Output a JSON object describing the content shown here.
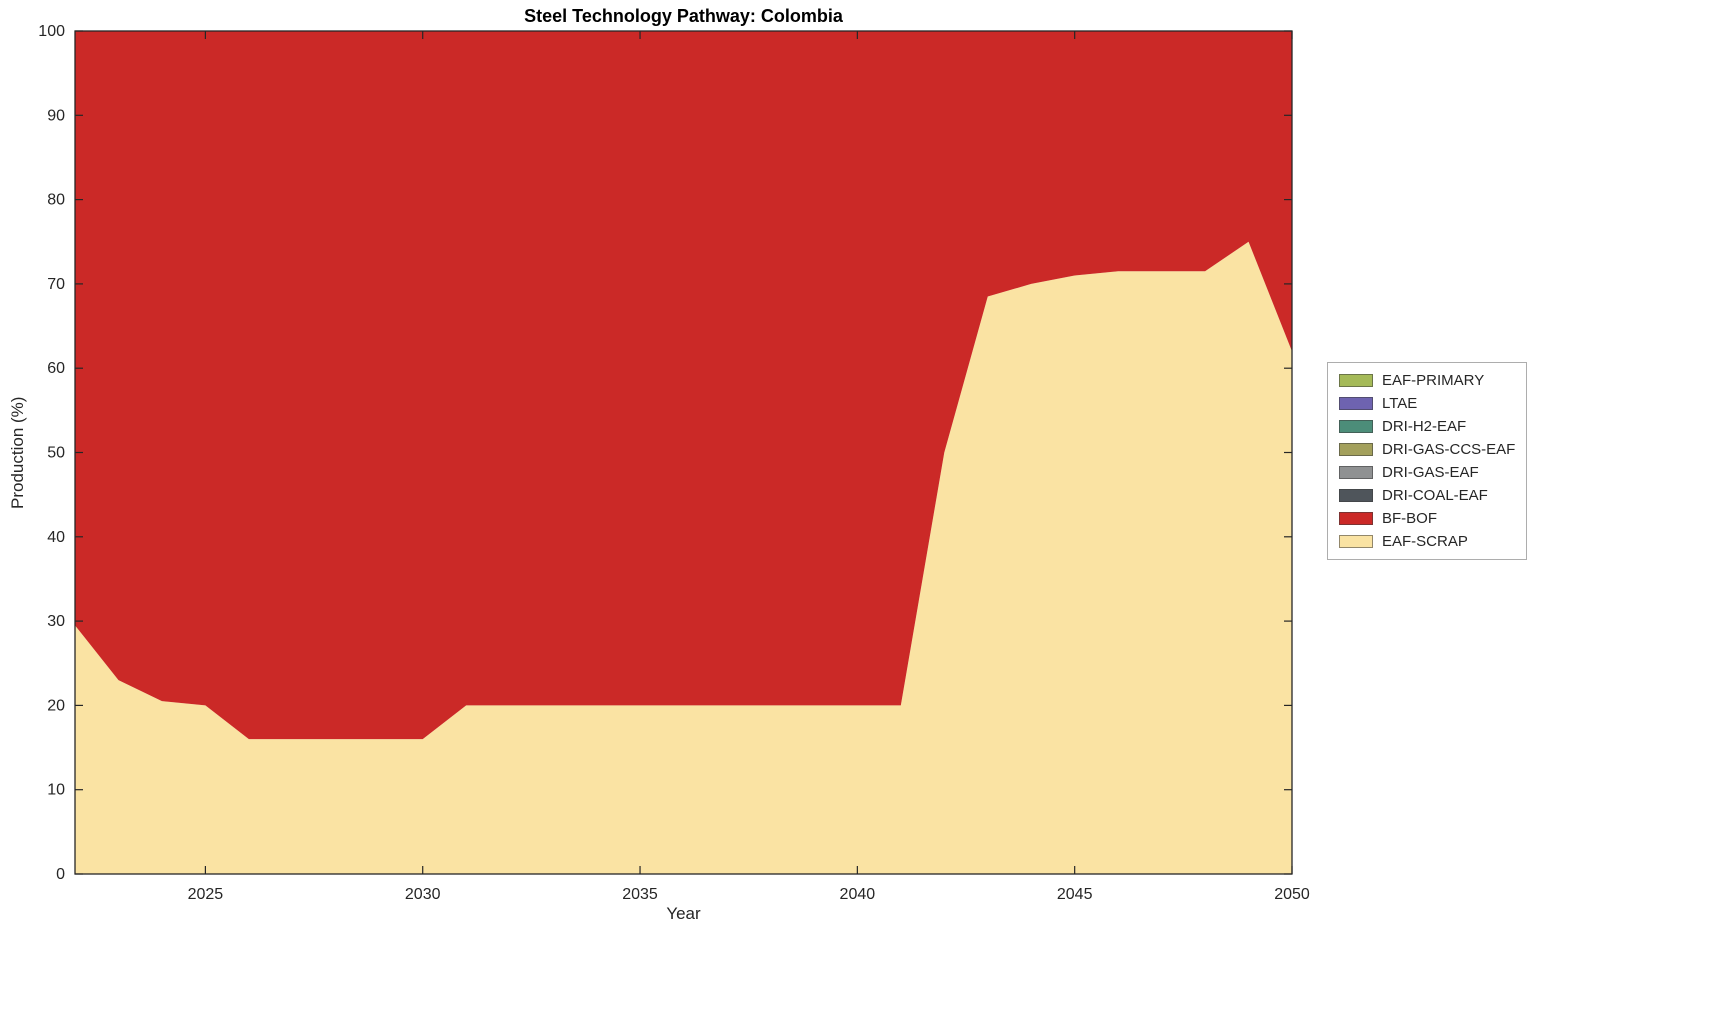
{
  "chart_data": {
    "type": "area",
    "stacked": true,
    "title": "Steel Technology Pathway: Colombia",
    "xlabel": "Year",
    "ylabel": "Production (%)",
    "xlim": [
      2022,
      2050
    ],
    "ylim": [
      0,
      100
    ],
    "x_ticks": [
      2025,
      2030,
      2035,
      2040,
      2045,
      2050
    ],
    "y_ticks": [
      0,
      10,
      20,
      30,
      40,
      50,
      60,
      70,
      80,
      90,
      100
    ],
    "grid": false,
    "x": [
      2022,
      2023,
      2024,
      2025,
      2026,
      2027,
      2028,
      2029,
      2030,
      2031,
      2032,
      2033,
      2034,
      2035,
      2036,
      2037,
      2038,
      2039,
      2040,
      2041,
      2042,
      2043,
      2044,
      2045,
      2046,
      2047,
      2048,
      2049,
      2050
    ],
    "series": [
      {
        "name": "EAF-SCRAP",
        "color": "#FAE3A3",
        "values": [
          29.5,
          23,
          20.5,
          20,
          16,
          16,
          16,
          16,
          16,
          20,
          20,
          20,
          20,
          20,
          20,
          20,
          20,
          20,
          20,
          20,
          50,
          68.5,
          70,
          71,
          71.5,
          71.5,
          71.5,
          75,
          62
        ]
      },
      {
        "name": "BF-BOF",
        "color": "#CB2927",
        "values": [
          70.5,
          77,
          79.5,
          80,
          84,
          84,
          84,
          84,
          84,
          80,
          80,
          80,
          80,
          80,
          80,
          80,
          80,
          80,
          80,
          80,
          50,
          31.5,
          30,
          29,
          28.5,
          28.5,
          28.5,
          25,
          38
        ]
      },
      {
        "name": "DRI-COAL-EAF",
        "color": "#4F555B",
        "values": 0
      },
      {
        "name": "DRI-GAS-EAF",
        "color": "#8F9192",
        "values": 0
      },
      {
        "name": "DRI-GAS-CCS-EAF",
        "color": "#A3A05C",
        "values": 0
      },
      {
        "name": "DRI-H2-EAF",
        "color": "#4C8D79",
        "values": 0
      },
      {
        "name": "LTAE",
        "color": "#6E63B0",
        "values": 0
      },
      {
        "name": "EAF-PRIMARY",
        "color": "#A5BA58",
        "values": 0
      }
    ],
    "legend": {
      "position": "right-outside",
      "items": [
        {
          "label": "EAF-PRIMARY",
          "color": "#A5BA58"
        },
        {
          "label": "LTAE",
          "color": "#6E63B0"
        },
        {
          "label": "DRI-H2-EAF",
          "color": "#4C8D79"
        },
        {
          "label": "DRI-GAS-CCS-EAF",
          "color": "#A3A05C"
        },
        {
          "label": "DRI-GAS-EAF",
          "color": "#8F9192"
        },
        {
          "label": "DRI-COAL-EAF",
          "color": "#4F555B"
        },
        {
          "label": "BF-BOF",
          "color": "#CB2927"
        },
        {
          "label": "EAF-SCRAP",
          "color": "#FAE3A3"
        }
      ]
    }
  }
}
